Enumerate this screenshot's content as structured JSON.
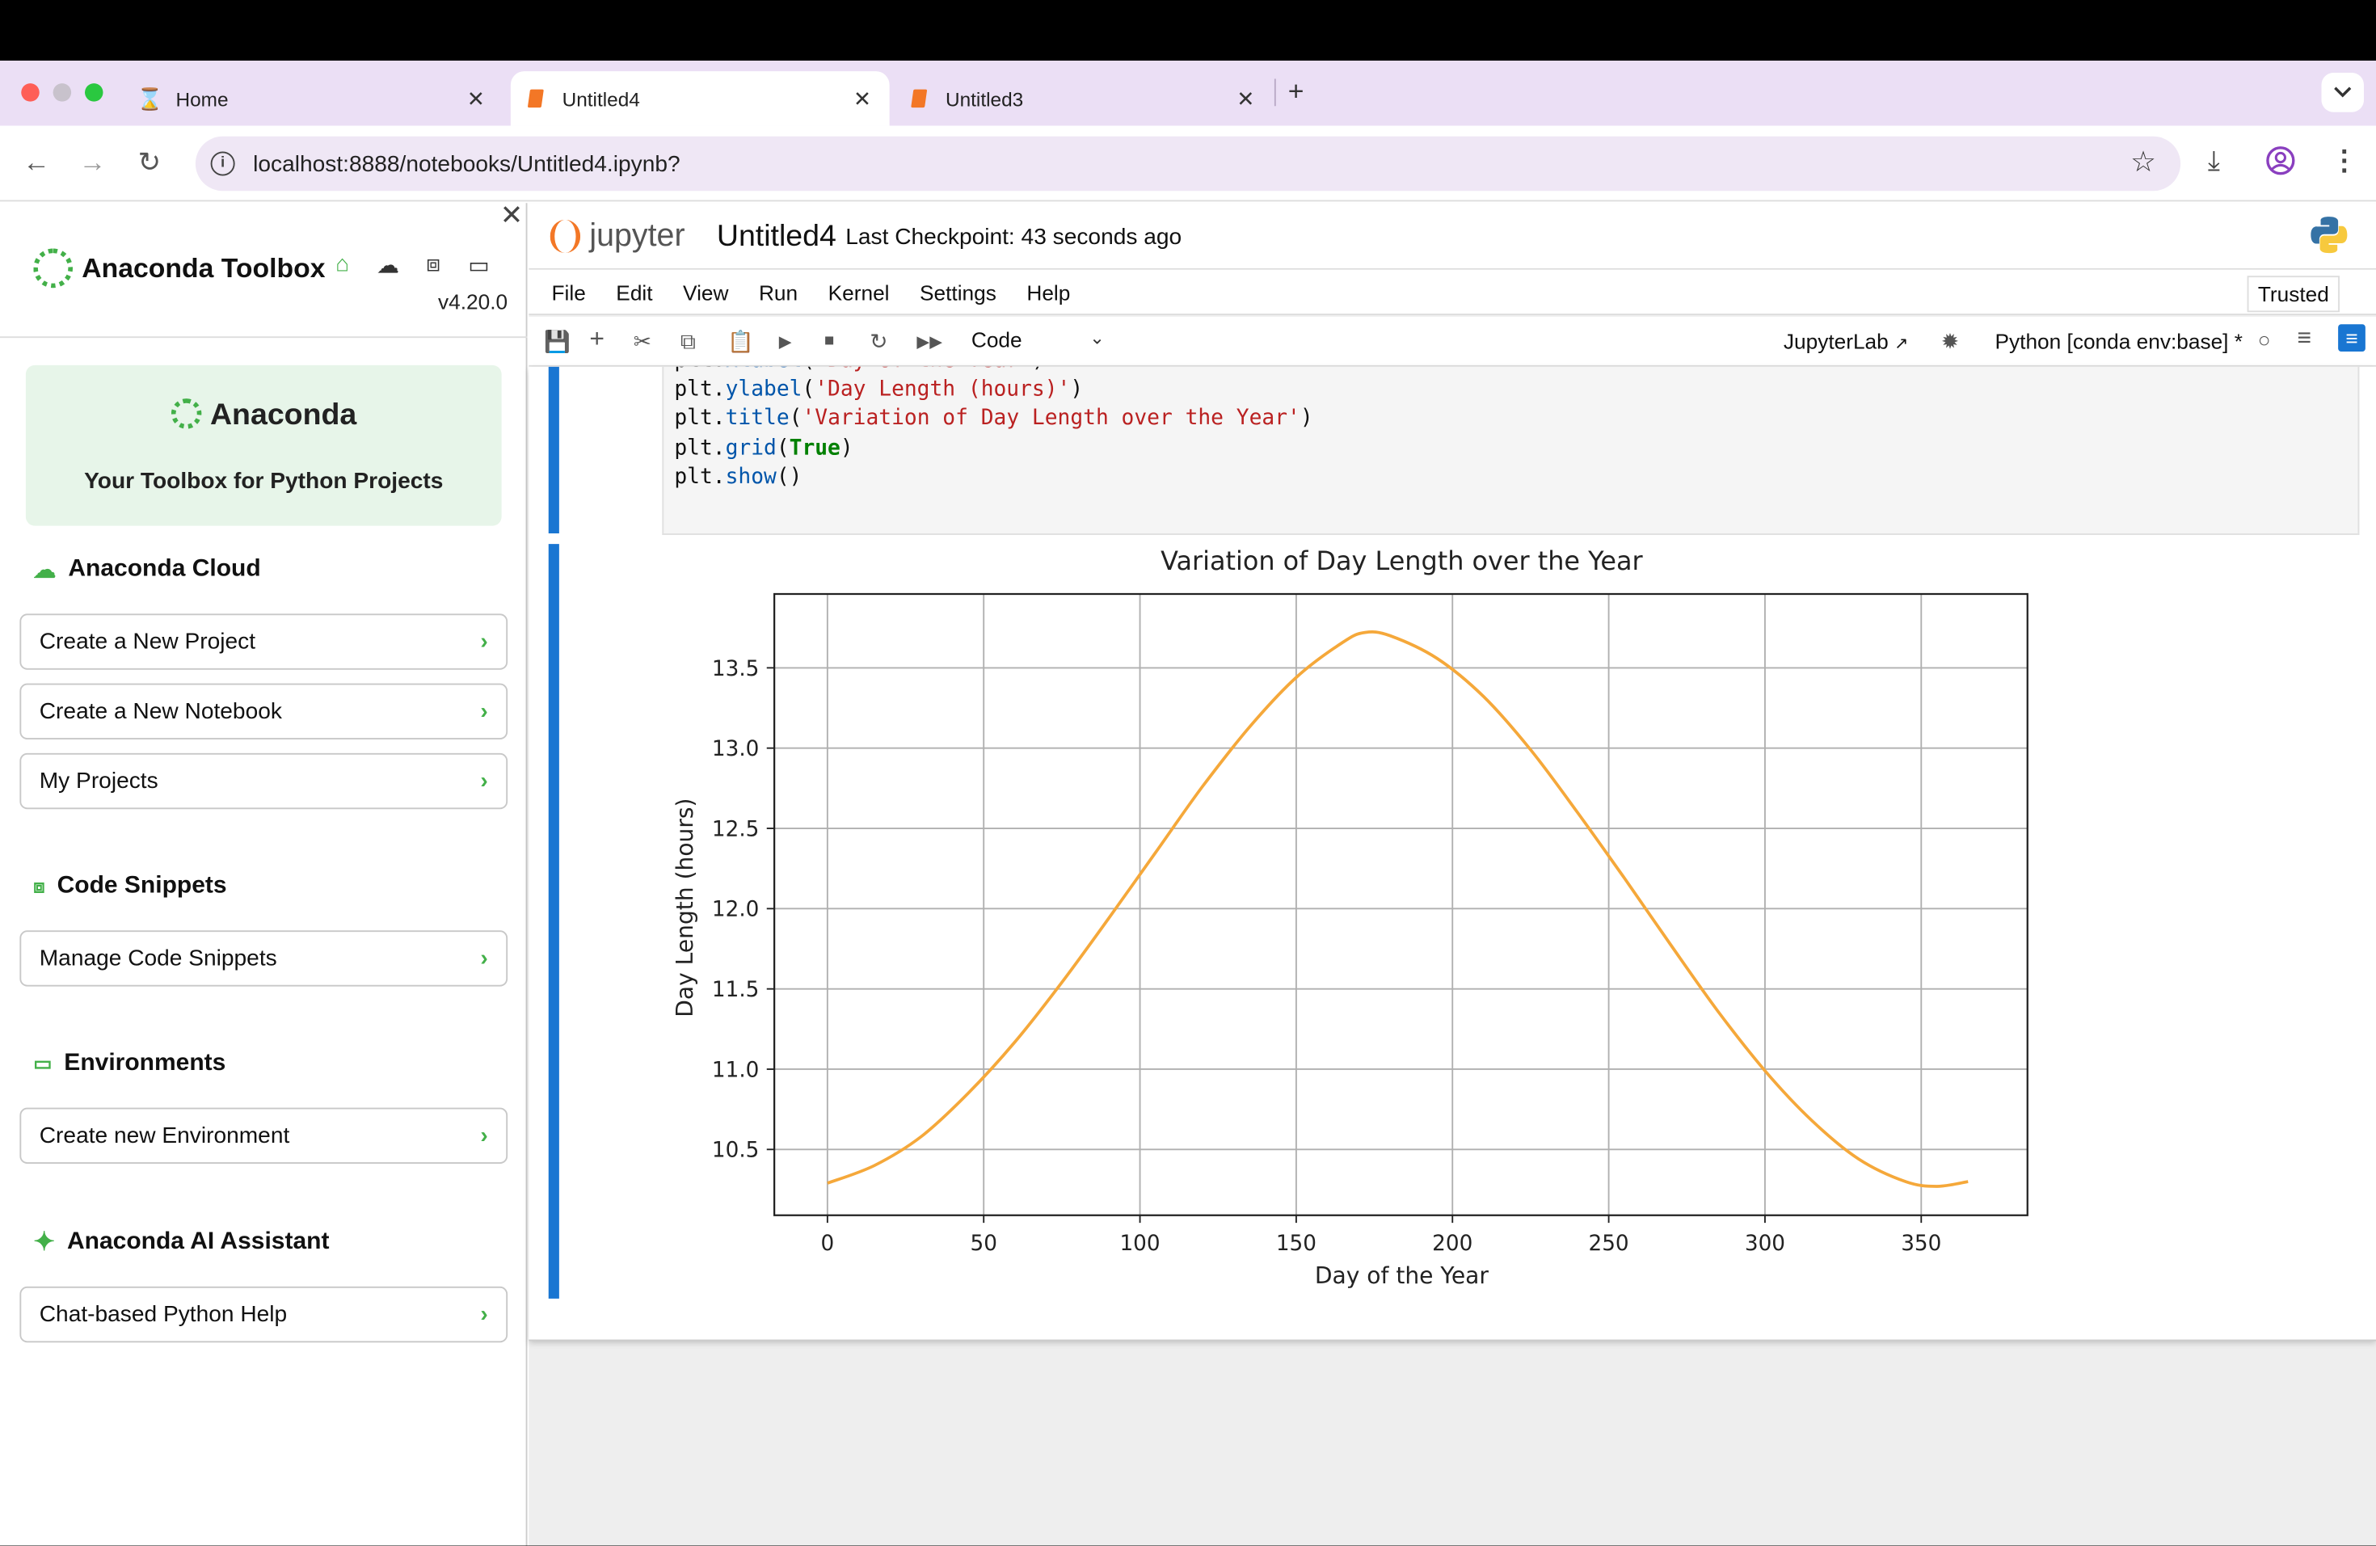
{
  "browser": {
    "tabs": [
      {
        "label": "Home",
        "icon": "hourglass-icon"
      },
      {
        "label": "Untitled4",
        "icon": "notebook-icon"
      },
      {
        "label": "Untitled3",
        "icon": "notebook-icon"
      }
    ],
    "url": "localhost:8888/notebooks/Untitled4.ipynb?"
  },
  "sidebar": {
    "title": "Anaconda Toolbox",
    "version": "v4.20.0",
    "hero_brand": "Anaconda",
    "hero_sub": "Your Toolbox for Python Projects",
    "sections": [
      {
        "title": "Anaconda Cloud",
        "items": [
          "Create a New Project",
          "Create a New Notebook",
          "My Projects"
        ]
      },
      {
        "title": "Code Snippets",
        "items": [
          "Manage Code Snippets"
        ]
      },
      {
        "title": "Environments",
        "items": [
          "Create new Environment"
        ]
      },
      {
        "title": "Anaconda AI Assistant",
        "items": [
          "Chat-based Python Help"
        ]
      }
    ]
  },
  "jupyter": {
    "logo_text": "jupyter",
    "notebook_name": "Untitled4",
    "checkpoint": "Last Checkpoint: 43 seconds ago",
    "menu": [
      "File",
      "Edit",
      "View",
      "Run",
      "Kernel",
      "Settings",
      "Help"
    ],
    "trusted": "Trusted",
    "cell_type": "Code",
    "jupyterlab_link": "JupyterLab",
    "kernel": "Python [conda env:base] *"
  },
  "code_lines": [
    "plt.xlabel('Day of the Year')",
    "plt.ylabel('Day Length (hours)')",
    "plt.title('Variation of Day Length over the Year')",
    "plt.grid(True)",
    "plt.show()"
  ],
  "chart_data": {
    "type": "line",
    "title": "Variation of Day Length over the Year",
    "xlabel": "Day of the Year",
    "ylabel": "Day Length (hours)",
    "xlim": [
      -17,
      384
    ],
    "ylim": [
      10.09,
      13.96
    ],
    "xticks": [
      0,
      50,
      100,
      150,
      200,
      250,
      300,
      350
    ],
    "yticks": [
      10.5,
      11.0,
      11.5,
      12.0,
      12.5,
      13.0,
      13.5
    ],
    "grid": true,
    "color": "#f5a83a",
    "x": [
      0,
      15,
      30,
      45,
      60,
      75,
      90,
      105,
      120,
      135,
      150,
      165,
      172,
      180,
      195,
      210,
      225,
      240,
      255,
      270,
      285,
      300,
      315,
      330,
      345,
      355,
      365
    ],
    "y": [
      10.29,
      10.4,
      10.58,
      10.85,
      11.17,
      11.54,
      11.94,
      12.35,
      12.76,
      13.13,
      13.44,
      13.66,
      13.72,
      13.7,
      13.56,
      13.32,
      12.99,
      12.6,
      12.19,
      11.77,
      11.36,
      10.99,
      10.68,
      10.44,
      10.3,
      10.27,
      10.3
    ]
  }
}
